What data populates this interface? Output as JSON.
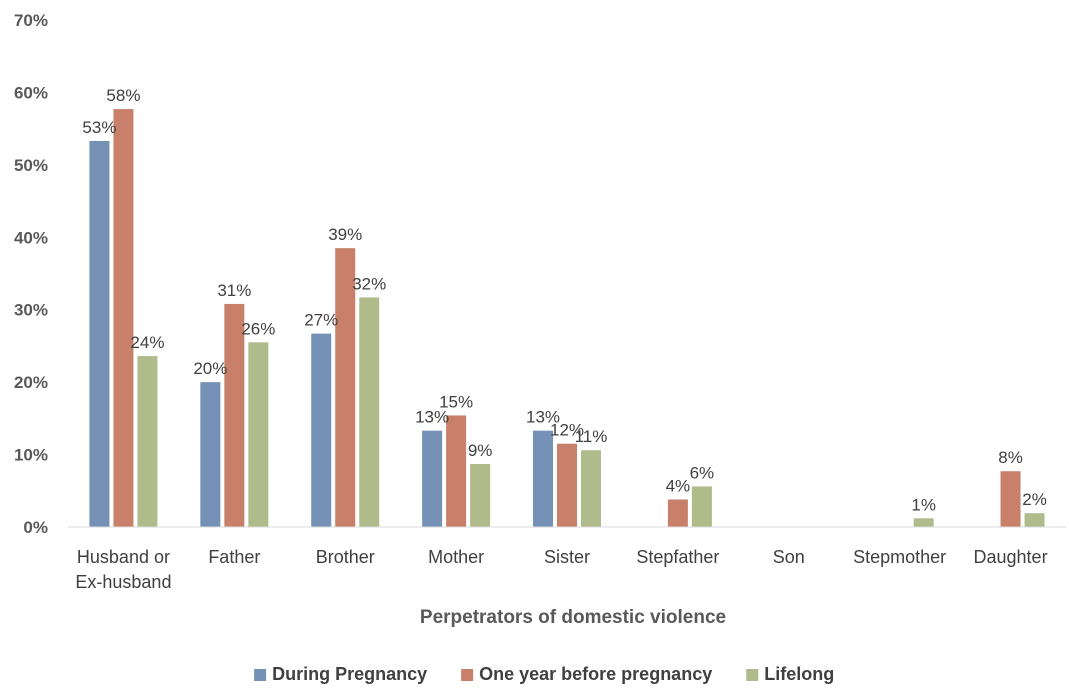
{
  "chart_data": {
    "type": "bar",
    "categories": [
      "Husband or Ex-husband",
      "Father",
      "Brother",
      "Mother",
      "Sister",
      "Stepfather",
      "Son",
      "Stepmother",
      "Daughter"
    ],
    "category_lines": [
      [
        "Husband or",
        "Ex-husband"
      ],
      [
        "Father"
      ],
      [
        "Brother"
      ],
      [
        "Mother"
      ],
      [
        "Sister"
      ],
      [
        "Stepfather"
      ],
      [
        "Son"
      ],
      [
        "Stepmother"
      ],
      [
        "Daughter"
      ]
    ],
    "series": [
      {
        "name": "During Pregnancy",
        "color": "#7591b6",
        "values": [
          53.3,
          20.0,
          26.7,
          13.3,
          13.3,
          null,
          null,
          null,
          null
        ],
        "labels": [
          "53%",
          "20%",
          "27%",
          "13%",
          "13%",
          null,
          null,
          null,
          null
        ]
      },
      {
        "name": "One year before pregnancy",
        "color": "#c8806a",
        "values": [
          57.7,
          30.8,
          38.5,
          15.4,
          11.5,
          3.8,
          null,
          null,
          7.7
        ],
        "labels": [
          "58%",
          "31%",
          "39%",
          "15%",
          "12%",
          "4%",
          null,
          null,
          "8%"
        ]
      },
      {
        "name": "Lifelong",
        "color": "#b0bb8c",
        "values": [
          23.6,
          25.5,
          31.7,
          8.7,
          10.6,
          5.6,
          null,
          1.2,
          1.9
        ],
        "labels": [
          "24%",
          "26%",
          "32%",
          "9%",
          "11%",
          "6%",
          null,
          "1%",
          "2%"
        ]
      }
    ],
    "ylim": [
      0,
      70
    ],
    "yticks": [
      0,
      10,
      20,
      30,
      40,
      50,
      60,
      70
    ],
    "ytick_labels": [
      "0%",
      "10%",
      "20%",
      "30%",
      "40%",
      "50%",
      "60%",
      "70%"
    ],
    "xlabel": "Perpetrators of domestic violence",
    "ylabel": "",
    "title": "",
    "grid": false,
    "legend_position": "bottom"
  }
}
